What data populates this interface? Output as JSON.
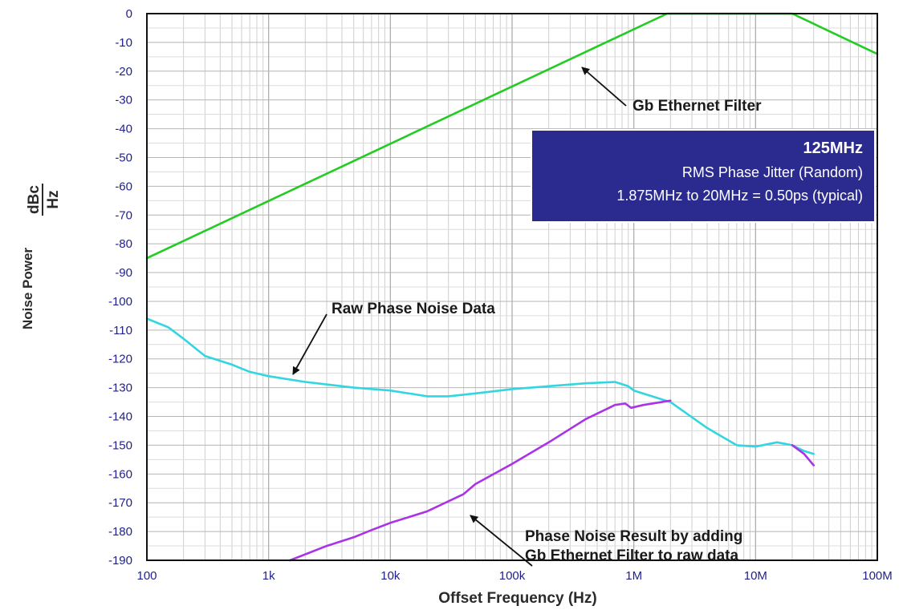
{
  "chart_data": {
    "type": "line",
    "title": "",
    "xlabel": "Offset Frequency (Hz)",
    "ylabel_main": "Noise Power",
    "ylabel_unit_num": "dBc",
    "ylabel_unit_den": "Hz",
    "x_scale": "log",
    "xlim": [
      100,
      100000000
    ],
    "ylim": [
      -190,
      0
    ],
    "grid": true,
    "x_tick_values": [
      100,
      1000,
      10000,
      100000,
      1000000,
      10000000,
      100000000
    ],
    "x_tick_labels": [
      "100",
      "1k",
      "10k",
      "100k",
      "1M",
      "10M",
      "100M"
    ],
    "y_tick_values": [
      0,
      -10,
      -20,
      -30,
      -40,
      -50,
      -60,
      -70,
      -80,
      -90,
      -100,
      -110,
      -120,
      -130,
      -140,
      -150,
      -160,
      -170,
      -180,
      -190
    ],
    "y_tick_labels": [
      "0",
      "-10",
      "-20",
      "-30",
      "-40",
      "-50",
      "-60",
      "-70",
      "-80",
      "-90",
      "-100",
      "-110",
      "-120",
      "-130",
      "-140",
      "-150",
      "-160",
      "-170",
      "-180",
      "-190"
    ],
    "series": [
      {
        "color": "#22cc22",
        "points": [
          [
            100,
            -85
          ],
          [
            1875000,
            0
          ],
          [
            20000000,
            0
          ],
          [
            100000000,
            -14
          ]
        ]
      },
      {
        "color": "#33d6e0",
        "points": [
          [
            100,
            -106
          ],
          [
            150,
            -109
          ],
          [
            200,
            -113
          ],
          [
            300,
            -119
          ],
          [
            500,
            -122
          ],
          [
            700,
            -124.5
          ],
          [
            1000,
            -126
          ],
          [
            2000,
            -128
          ],
          [
            5000,
            -130
          ],
          [
            10000,
            -131
          ],
          [
            20000,
            -133
          ],
          [
            30000,
            -133
          ],
          [
            50000,
            -132
          ],
          [
            100000,
            -130.5
          ],
          [
            200000,
            -129.5
          ],
          [
            400000,
            -128.5
          ],
          [
            700000,
            -128
          ],
          [
            900000,
            -129.5
          ],
          [
            1000000,
            -131
          ],
          [
            2000000,
            -135
          ],
          [
            4000000,
            -144
          ],
          [
            7000000,
            -150
          ],
          [
            10000000,
            -150.5
          ],
          [
            15000000,
            -149
          ],
          [
            20000000,
            -150
          ],
          [
            25000000,
            -152
          ],
          [
            30000000,
            -153
          ]
        ]
      },
      {
        "color": "#aa33e6",
        "points": [
          [
            1500,
            -190
          ],
          [
            3000,
            -185
          ],
          [
            5000,
            -182
          ],
          [
            7000,
            -179.5
          ],
          [
            10000,
            -177
          ],
          [
            20000,
            -173
          ],
          [
            40000,
            -167
          ],
          [
            50000,
            -163.5
          ],
          [
            100000,
            -156.5
          ],
          [
            200000,
            -149
          ],
          [
            400000,
            -141
          ],
          [
            700000,
            -136
          ],
          [
            850000,
            -135.5
          ],
          [
            950000,
            -137
          ],
          [
            1200000,
            -136
          ],
          [
            2000000,
            -134.5
          ]
        ]
      },
      {
        "color": "#aa33e6",
        "points": [
          [
            20000000,
            -150
          ],
          [
            25000000,
            -153
          ],
          [
            30000000,
            -157
          ]
        ]
      }
    ],
    "annotations": [
      {
        "text": "Gb Ethernet Filter"
      },
      {
        "text": "Raw Phase Noise Data"
      },
      {
        "lines": [
          "Phase Noise Result by adding",
          "Gb Ethernet Filter to raw data"
        ]
      }
    ],
    "info_box": {
      "fill": "#2b2b8f",
      "lines": [
        "125MHz",
        "RMS Phase Jitter (Random)",
        "1.875MHz to 20MHz = 0.50ps (typical)"
      ]
    }
  }
}
